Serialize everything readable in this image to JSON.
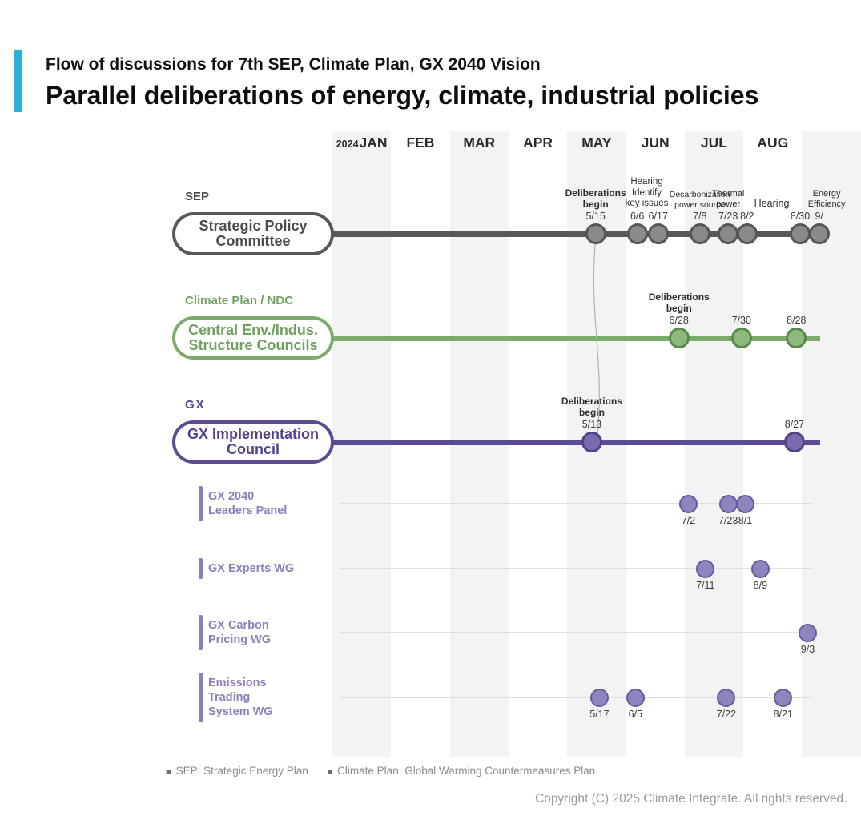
{
  "header": {
    "kicker": "Flow of discussions for 7th SEP, Climate Plan, GX 2040 Vision",
    "title": "Parallel deliberations of energy, climate, industrial policies",
    "accent_color": "#29b1d7"
  },
  "timeline": {
    "year": "2024",
    "months": [
      "JAN",
      "FEB",
      "MAR",
      "APR",
      "MAY",
      "JUN",
      "JUL",
      "AUG",
      ""
    ],
    "striped_month_indexes": [
      0,
      2,
      4,
      6,
      8
    ],
    "stripe_color": "#f3f3f3"
  },
  "tracks": [
    {
      "id": "sep",
      "tag": "SEP",
      "name_lines": [
        "Strategic Policy",
        "Committee"
      ],
      "line_color": "#57585a",
      "text_color": "#4c4c4e",
      "dot_fill": "#8a8a8c",
      "dot_stroke": "#565658",
      "dots": [
        {
          "date": "5/15"
        },
        {
          "date": "6/6"
        },
        {
          "date": "6/17"
        },
        {
          "date": "7/8"
        },
        {
          "date": "7/23"
        },
        {
          "date": "8/2"
        },
        {
          "date": "8/30"
        },
        {
          "date": "9/9",
          "label": "9/"
        }
      ],
      "notes": [
        {
          "lines": [
            "Deliberations",
            "begin"
          ],
          "anchor": "5/15",
          "bold": true,
          "size": 12
        },
        {
          "lines": [
            "Hearing",
            "Identify",
            "key issues"
          ],
          "anchor": "6/11",
          "size": 11.5
        },
        {
          "lines": [
            "Decarbonization",
            "power source"
          ],
          "anchor": "7/8",
          "size": 10.5
        },
        {
          "lines": [
            "Thermal",
            "power"
          ],
          "anchor": "7/23",
          "size": 11
        },
        {
          "lines": [
            "Hearing"
          ],
          "anchor": "8/15",
          "size": 12.5
        },
        {
          "lines": [
            "Energy",
            "Efficiency"
          ],
          "anchor": "9/13",
          "size": 11
        }
      ]
    },
    {
      "id": "climate",
      "tag": "Climate Plan / NDC",
      "name_lines": [
        "Central Env./Indus.",
        "Structure Councils"
      ],
      "line_color": "#7cab6b",
      "text_color": "#71a161",
      "dot_fill": "#8eb97c",
      "dot_stroke": "#5a8a4b",
      "dots": [
        {
          "date": "6/28"
        },
        {
          "date": "7/30"
        },
        {
          "date": "8/28"
        }
      ],
      "notes": [
        {
          "lines": [
            "Deliberations",
            "begin"
          ],
          "anchor": "6/28",
          "bold": true,
          "size": 12
        }
      ]
    },
    {
      "id": "gx",
      "tag": "GX",
      "name_lines": [
        "GX Implementation",
        "Council"
      ],
      "line_color": "#5b4b92",
      "text_color": "#53418c",
      "dot_fill": "#7b6ab1",
      "dot_stroke": "#514386",
      "dots": [
        {
          "date": "5/13"
        },
        {
          "date": "8/27"
        }
      ],
      "notes": [
        {
          "lines": [
            "Deliberations",
            "begin"
          ],
          "anchor": "5/13",
          "bold": true,
          "size": 12
        }
      ]
    }
  ],
  "connector": {
    "from": {
      "track": "sep",
      "date": "5/15"
    },
    "to": {
      "track": "gx",
      "date": "5/13"
    },
    "color": "#b5b5b5"
  },
  "subtracks": [
    {
      "id": "gx-2040-leaders-panel",
      "name_lines": [
        "GX 2040",
        "Leaders Panel"
      ],
      "dots": [
        "7/2",
        "7/23",
        "8/1"
      ]
    },
    {
      "id": "gx-experts-wg",
      "name_lines": [
        "GX Experts WG"
      ],
      "dots": [
        "7/11",
        "8/9"
      ]
    },
    {
      "id": "gx-carbon-pricing-wg",
      "name_lines": [
        "GX Carbon",
        "Pricing WG"
      ],
      "dots": [
        "9/3"
      ]
    },
    {
      "id": "emissions-trading-system-wg",
      "name_lines": [
        "Emissions",
        "Trading",
        "System WG"
      ],
      "dots": [
        "5/17",
        "6/5",
        "7/22",
        "8/21"
      ]
    }
  ],
  "subtrack_style": {
    "text_color": "#8d7fbd",
    "bar_color": "#8d7fbd",
    "dot_fill": "#9084bf",
    "dot_stroke": "#675a9d",
    "line_color": "#dfdfdf"
  },
  "footer": {
    "legend": [
      "SEP: Strategic Energy Plan",
      "Climate Plan: Global Warming Countermeasures Plan"
    ],
    "copyright": "Copyright (C) 2025 Climate Integrate. All rights reserved."
  }
}
